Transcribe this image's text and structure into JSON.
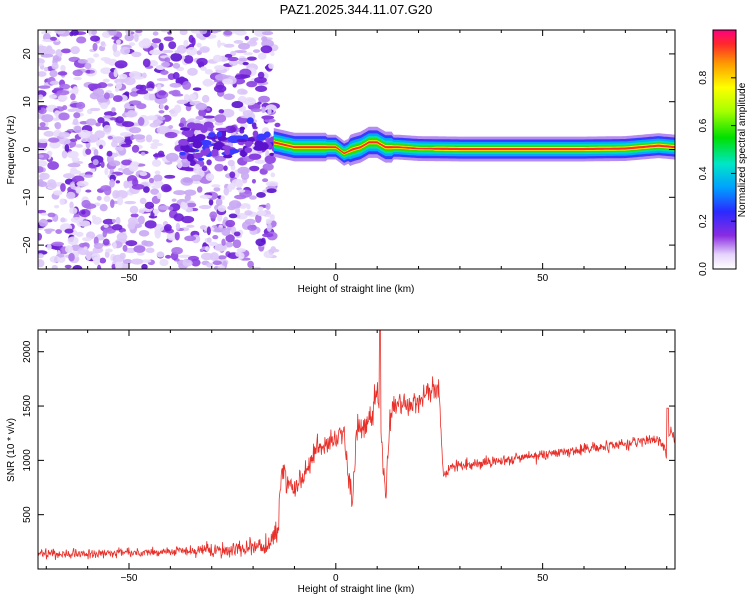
{
  "title": "PAZ1.2025.344.11.07.G20",
  "chart_data": [
    {
      "type": "heatmap",
      "title": "PAZ1.2025.344.11.07.G20",
      "xlabel": "Height of straight line (km)",
      "ylabel": "Frequency (Hz)",
      "xlim": [
        -72,
        82
      ],
      "ylim": [
        -25,
        25
      ],
      "xticks": [
        -50,
        0,
        50
      ],
      "yticks": [
        -20,
        -10,
        0,
        10,
        20
      ],
      "colorbar": {
        "label": "Normalized spectral amplitude",
        "range": [
          0,
          1
        ],
        "ticks": [
          "0.0",
          "0.2",
          "0.4",
          "0.6",
          "0.8"
        ],
        "colormap": "rainbow"
      },
      "noise_region_km": [
        -72,
        -15
      ],
      "signal_track": {
        "x_km": [
          -15,
          -10,
          -5,
          0,
          2,
          4,
          6,
          8,
          10,
          12,
          15,
          20,
          30,
          40,
          50,
          60,
          70,
          78,
          82
        ],
        "freq_hz": [
          1.5,
          0.5,
          0.5,
          0.5,
          -0.8,
          0,
          0.5,
          1.5,
          1.5,
          0.5,
          0.5,
          0.2,
          0.1,
          0.1,
          0.1,
          0.1,
          0.2,
          0.8,
          0.5
        ]
      }
    },
    {
      "type": "line",
      "xlabel": "Height of straight line (km)",
      "ylabel": "SNR (10 * v/v)",
      "xlim": [
        -72,
        82
      ],
      "ylim": [
        0,
        2200
      ],
      "xticks": [
        -50,
        0,
        50
      ],
      "yticks": [
        500,
        1000,
        1500,
        2000
      ],
      "color": "#e8302a",
      "series": [
        {
          "name": "SNR",
          "x": [
            -72,
            -60,
            -50,
            -40,
            -30,
            -20,
            -16,
            -14,
            -13,
            -12,
            -10,
            -8,
            -6,
            -4,
            -2,
            0,
            2,
            3,
            4,
            5,
            6,
            8,
            9,
            10,
            11,
            12,
            13,
            14,
            16,
            18,
            20,
            22,
            24,
            25,
            26,
            27,
            30,
            40,
            50,
            60,
            70,
            78,
            80,
            81,
            82
          ],
          "y": [
            140,
            140,
            150,
            160,
            170,
            200,
            220,
            350,
            950,
            800,
            750,
            820,
            1000,
            1100,
            1150,
            1200,
            1250,
            900,
            600,
            1250,
            1300,
            1350,
            1400,
            1700,
            1200,
            600,
            1350,
            1500,
            1550,
            1500,
            1550,
            1600,
            1650,
            1600,
            850,
            920,
            950,
            1000,
            1050,
            1100,
            1150,
            1200,
            1050,
            1300,
            1200
          ]
        }
      ]
    }
  ]
}
